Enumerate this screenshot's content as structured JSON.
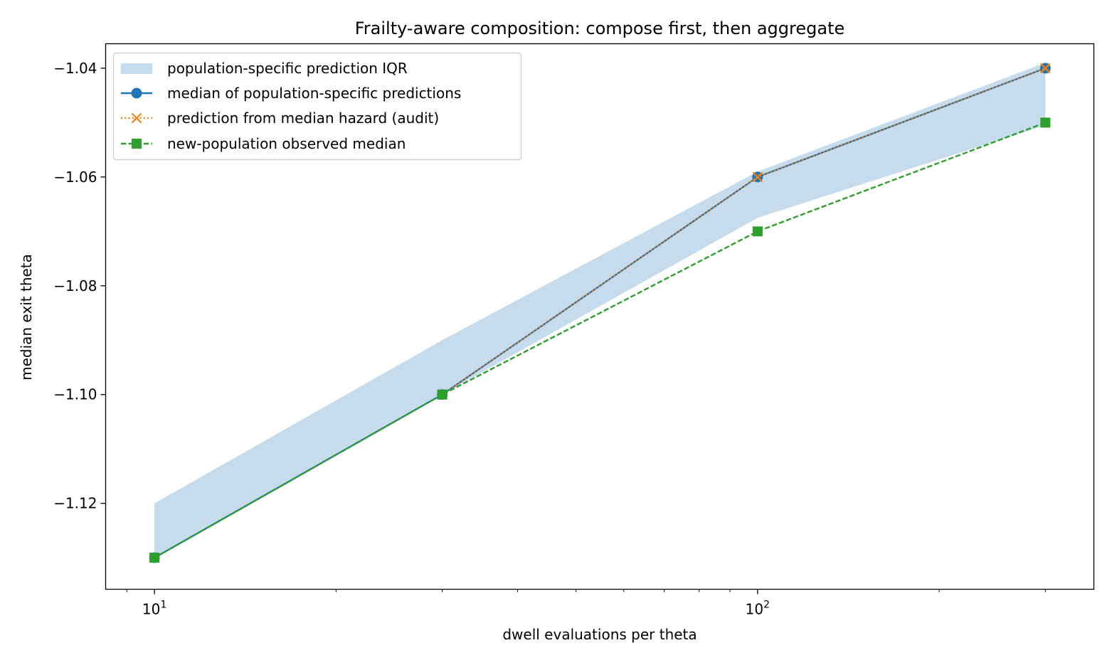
{
  "chart_data": {
    "type": "line",
    "title": "Frailty-aware composition: compose first, then aggregate",
    "xlabel": "dwell evaluations per theta",
    "ylabel": "median exit theta",
    "xscale": "log",
    "x": [
      10,
      30,
      100,
      300
    ],
    "xlim": [
      8.3,
      361
    ],
    "ylim": [
      -1.1358,
      -1.0355
    ],
    "yticks": [
      -1.12,
      -1.1,
      -1.08,
      -1.06,
      -1.04
    ],
    "ytick_labels": [
      "−1.12",
      "−1.10",
      "−1.08",
      "−1.06",
      "−1.04"
    ],
    "xticks_major": [
      10,
      100
    ],
    "xticks_minor": [
      9,
      20,
      30,
      40,
      50,
      60,
      70,
      80,
      90,
      200,
      300
    ],
    "xtick_labels": [
      {
        "base": "10",
        "exp": "1"
      },
      {
        "base": "10",
        "exp": "2"
      }
    ],
    "band": {
      "name": "population-specific prediction IQR",
      "color": "#c6dbec",
      "lower": [
        -1.13,
        -1.1,
        -1.0675,
        -1.0505
      ],
      "upper": [
        -1.12,
        -1.09,
        -1.059,
        -1.039
      ]
    },
    "series": [
      {
        "name": "median of population-specific predictions",
        "values": [
          -1.13,
          -1.1,
          -1.06,
          -1.04
        ],
        "color": "#1f77b4",
        "dash": "",
        "marker": "circle"
      },
      {
        "name": "prediction from median hazard (audit)",
        "values": [
          -1.13,
          -1.1,
          -1.06,
          -1.04
        ],
        "color": "#ff7f0e",
        "dash": "2,3.3",
        "marker": "x"
      },
      {
        "name": "new-population observed median",
        "values": [
          -1.13,
          -1.1,
          -1.07,
          -1.05
        ],
        "color": "#2ca02c",
        "dash": "7.4,3.2",
        "marker": "square"
      }
    ],
    "legend_placement": "upper left",
    "grid": false
  }
}
